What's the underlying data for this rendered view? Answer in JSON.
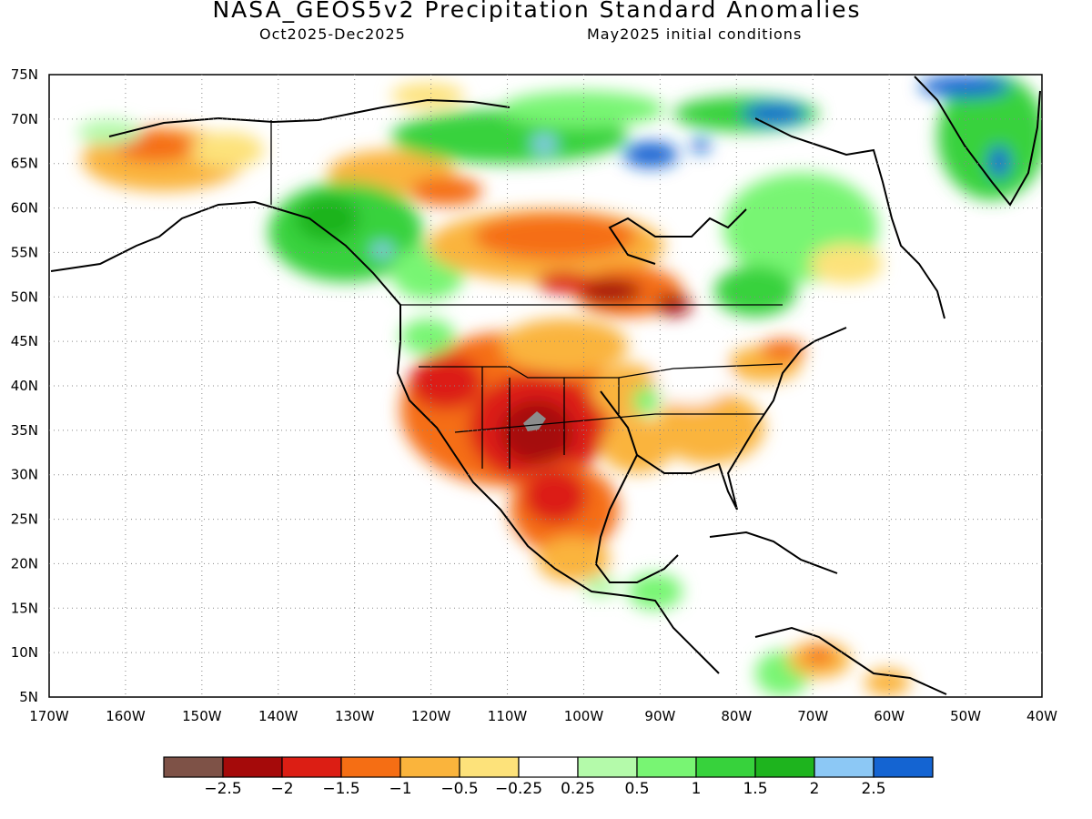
{
  "title": "NASA_GEOS5v2 Precipitation Standard Anomalies",
  "subtitle_left": "Oct2025-Dec2025",
  "subtitle_right": "May2025 initial conditions",
  "map": {
    "lat_ticks": [
      "75N",
      "70N",
      "65N",
      "60N",
      "55N",
      "50N",
      "45N",
      "40N",
      "35N",
      "30N",
      "25N",
      "20N",
      "15N",
      "10N",
      "5N"
    ],
    "lon_ticks": [
      "170W",
      "160W",
      "150W",
      "140W",
      "130W",
      "120W",
      "110W",
      "100W",
      "90W",
      "80W",
      "70W",
      "60W",
      "50W",
      "40W"
    ],
    "lat_values": [
      75,
      70,
      65,
      60,
      55,
      50,
      45,
      40,
      35,
      30,
      25,
      20,
      15,
      10,
      5
    ],
    "lon_values": [
      -170,
      -160,
      -150,
      -140,
      -130,
      -120,
      -110,
      -100,
      -90,
      -80,
      -70,
      -60,
      -50,
      -40
    ],
    "extent": {
      "lon_min": -170,
      "lon_max": -40,
      "lat_min": 5,
      "lat_max": 75
    },
    "gridlines": "dotted"
  },
  "colorbar": {
    "colors": [
      "#7e5247",
      "#a50a0a",
      "#dc1e14",
      "#f56e14",
      "#fab43c",
      "#fde27a",
      "#ffffff",
      "#b4faaa",
      "#78f573",
      "#37d23c",
      "#1eb41e",
      "#8cc8f5",
      "#1464d2"
    ],
    "labels": [
      "-2.5",
      "-2",
      "-1.5",
      "-1",
      "-0.5",
      "-0.25",
      "0.25",
      "0.5",
      "1",
      "1.5",
      "2",
      "2.5"
    ]
  }
}
